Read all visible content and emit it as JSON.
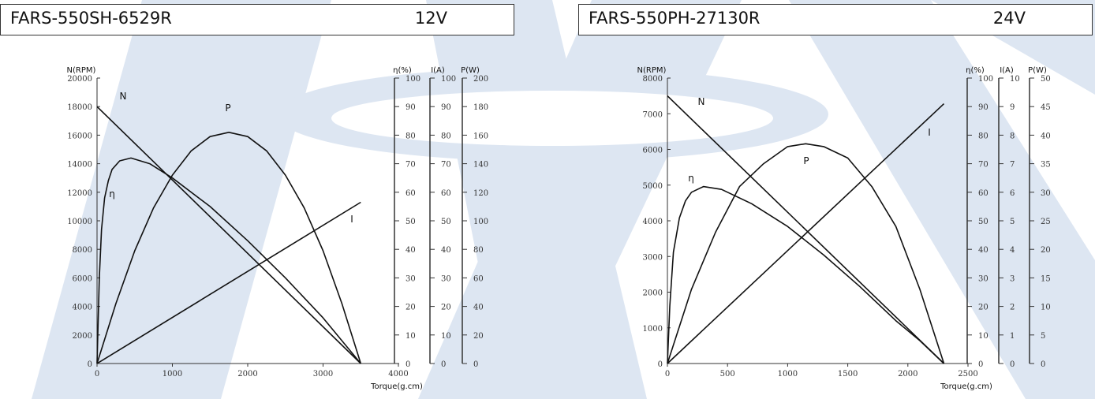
{
  "chart_data": [
    {
      "type": "line",
      "title": "FARS-550SH-6529R",
      "voltage": "12V",
      "xlabel": "Torque(g.cm)",
      "xlim": [
        0,
        4000
      ],
      "xticks": [
        "0",
        "1000",
        "2000",
        "3000",
        "4000"
      ],
      "axes": [
        {
          "label": "N(RPM)",
          "lim": [
            0,
            20000
          ],
          "ticks": [
            "0",
            "2000",
            "4000",
            "6000",
            "8000",
            "10000",
            "12000",
            "14000",
            "16000",
            "18000",
            "20000"
          ]
        },
        {
          "label": "η(%)",
          "lim": [
            0,
            100
          ],
          "ticks": [
            "0",
            "10",
            "20",
            "30",
            "40",
            "50",
            "60",
            "70",
            "80",
            "90",
            "100"
          ]
        },
        {
          "label": "I(A)",
          "lim": [
            0,
            100
          ],
          "ticks": [
            "0",
            "10",
            "20",
            "30",
            "40",
            "50",
            "60",
            "70",
            "80",
            "90",
            "100"
          ]
        },
        {
          "label": "P(W)",
          "lim": [
            0,
            200
          ],
          "ticks": [
            "0",
            "20",
            "40",
            "60",
            "80",
            "100",
            "120",
            "140",
            "160",
            "180",
            "200"
          ]
        }
      ],
      "series": [
        {
          "name": "N",
          "axis": 0,
          "x": [
            0,
            3500
          ],
          "y": [
            18000,
            0
          ]
        },
        {
          "name": "η",
          "axis": 1,
          "x": [
            0,
            30,
            60,
            100,
            150,
            200,
            300,
            450,
            700,
            1000,
            1500,
            2000,
            2500,
            3000,
            3500
          ],
          "y": [
            0,
            30,
            47,
            58,
            64,
            68,
            71,
            72,
            70,
            65,
            55,
            43,
            30,
            16,
            0
          ]
        },
        {
          "name": "I",
          "axis": 2,
          "x": [
            0,
            3500
          ],
          "y": [
            0,
            56.5
          ]
        },
        {
          "name": "P",
          "axis": 3,
          "x": [
            0,
            250,
            500,
            750,
            1000,
            1250,
            1500,
            1750,
            2000,
            2250,
            2500,
            2750,
            3000,
            3250,
            3500
          ],
          "y": [
            0,
            42,
            79,
            109,
            132,
            149,
            159,
            162,
            159,
            149,
            132,
            109,
            79,
            42,
            0
          ]
        }
      ],
      "curve_labels": [
        "N",
        "η",
        "I",
        "P"
      ]
    },
    {
      "type": "line",
      "title": "FARS-550PH-27130R",
      "voltage": "24V",
      "xlabel": "Torque(g.cm)",
      "xlim": [
        0,
        2500
      ],
      "xticks": [
        "0",
        "500",
        "1000",
        "1500",
        "2000",
        "2500"
      ],
      "axes": [
        {
          "label": "N(RPM)",
          "lim": [
            0,
            8000
          ],
          "ticks": [
            "0",
            "1000",
            "2000",
            "3000",
            "4000",
            "5000",
            "6000",
            "7000",
            "8000"
          ]
        },
        {
          "label": "η(%)",
          "lim": [
            0,
            100
          ],
          "ticks": [
            "0",
            "10",
            "20",
            "30",
            "40",
            "50",
            "60",
            "70",
            "80",
            "90",
            "100"
          ]
        },
        {
          "label": "I(A)",
          "lim": [
            0,
            10
          ],
          "ticks": [
            "0",
            "1",
            "2",
            "3",
            "4",
            "5",
            "6",
            "7",
            "8",
            "9",
            "10"
          ]
        },
        {
          "label": "P(W)",
          "lim": [
            0,
            50
          ],
          "ticks": [
            "0",
            "5",
            "10",
            "15",
            "20",
            "25",
            "30",
            "35",
            "40",
            "45",
            "50"
          ]
        }
      ],
      "series": [
        {
          "name": "N",
          "axis": 0,
          "x": [
            0,
            2300
          ],
          "y": [
            7500,
            0
          ]
        },
        {
          "name": "η",
          "axis": 1,
          "x": [
            0,
            20,
            50,
            100,
            150,
            200,
            300,
            450,
            700,
            1000,
            1300,
            1600,
            1900,
            2100,
            2300
          ],
          "y": [
            0,
            20,
            39,
            51,
            57,
            60,
            62,
            61,
            56,
            48,
            38,
            27,
            15,
            8,
            0
          ]
        },
        {
          "name": "I",
          "axis": 2,
          "x": [
            0,
            2300
          ],
          "y": [
            0,
            9.1
          ]
        },
        {
          "name": "P",
          "axis": 3,
          "x": [
            0,
            200,
            400,
            600,
            800,
            1000,
            1150,
            1300,
            1500,
            1700,
            1900,
            2100,
            2300
          ],
          "y": [
            0,
            13,
            23,
            31,
            35,
            38,
            38.5,
            38,
            36,
            31,
            24,
            13,
            0
          ]
        }
      ],
      "curve_labels": [
        "N",
        "η",
        "I",
        "P"
      ]
    }
  ]
}
